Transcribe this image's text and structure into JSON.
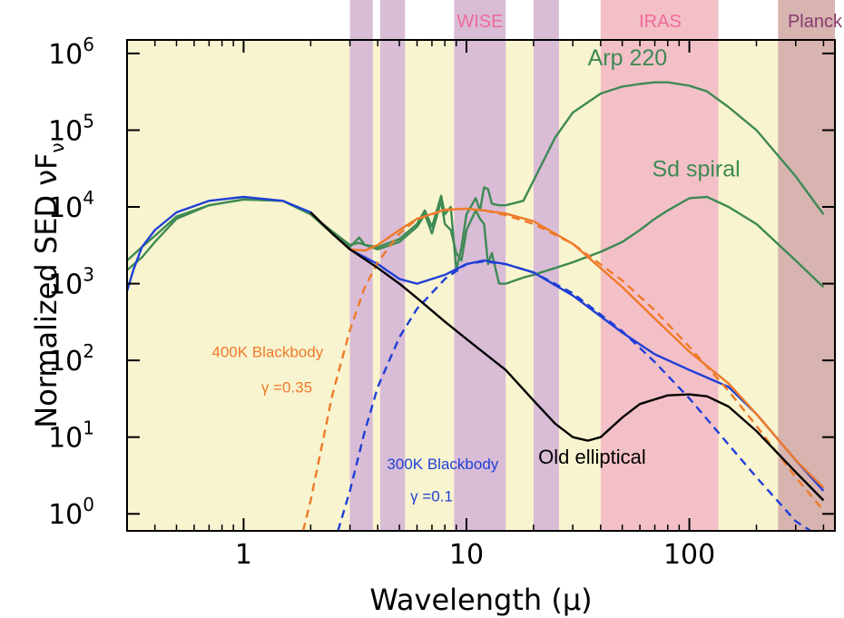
{
  "chart_data": {
    "type": "line",
    "title": "",
    "xlabel": "Wavelength (μ)",
    "ylabel": "Normalized SED νF",
    "ylabel_sub": "ν",
    "x_scale": "log",
    "y_scale": "log",
    "xlim": [
      0.3,
      450
    ],
    "ylim": [
      0.6,
      1500000
    ],
    "x_ticks": [
      {
        "value": 1,
        "label": "1"
      },
      {
        "value": 10,
        "label": "10"
      },
      {
        "value": 100,
        "label": "100"
      }
    ],
    "y_ticks": [
      {
        "value": 1,
        "base": "10",
        "exp": "0"
      },
      {
        "value": 10,
        "base": "10",
        "exp": "1"
      },
      {
        "value": 100,
        "base": "10",
        "exp": "2"
      },
      {
        "value": 1000,
        "base": "10",
        "exp": "3"
      },
      {
        "value": 10000,
        "base": "10",
        "exp": "4"
      },
      {
        "value": 100000,
        "base": "10",
        "exp": "5"
      },
      {
        "value": 1000000,
        "base": "10",
        "exp": "6"
      }
    ],
    "background_color": "#f8f4cf",
    "bands": [
      {
        "name": "",
        "x0": 3.0,
        "x1": 3.8,
        "color": "#d9bcd6"
      },
      {
        "name": "",
        "x0": 4.1,
        "x1": 5.3,
        "color": "#d9bcd6"
      },
      {
        "name": "WISE",
        "x0": 8.8,
        "x1": 15.0,
        "color": "#d9bcd6"
      },
      {
        "name": "",
        "x0": 20.0,
        "x1": 26.0,
        "color": "#d9bcd6"
      },
      {
        "name": "IRAS",
        "x0": 40.0,
        "x1": 135.0,
        "color": "#f4c0c8"
      },
      {
        "name": "Planck",
        "x0": 250.0,
        "x1": 450.0,
        "color": "#d7b4b0"
      }
    ],
    "band_labels": [
      {
        "text": "WISE",
        "x": 11.5,
        "color": "#ee6b9a"
      },
      {
        "text": "IRAS",
        "x": 74,
        "color": "#ee6b9a"
      },
      {
        "text": "Planck",
        "x": 345,
        "color": "#8a3a6e"
      }
    ],
    "series": [
      {
        "name": "Arp 220",
        "color": "#3e8a53",
        "dash": false,
        "x": [
          0.3,
          0.35,
          0.4,
          0.5,
          0.7,
          1.0,
          1.5,
          2.0,
          2.5,
          3.0,
          3.3,
          3.5,
          4.0,
          5.0,
          6.0,
          6.5,
          7.0,
          7.7,
          8.0,
          8.5,
          9.0,
          9.5,
          10.0,
          11.0,
          11.5,
          12.0,
          12.5,
          13.0,
          14.0,
          15.0,
          18.0,
          20.0,
          25.0,
          30.0,
          40.0,
          50.0,
          60.0,
          70.0,
          80.0,
          100.0,
          120.0,
          150.0,
          200.0,
          300.0,
          400.0
        ],
        "values": [
          1500,
          2200,
          3500,
          7000,
          10500,
          12500,
          12000,
          8000,
          4800,
          3200,
          3400,
          3200,
          3000,
          3800,
          6000,
          9000,
          5500,
          14000,
          8000,
          10000,
          1500,
          3000,
          8000,
          13000,
          9000,
          18000,
          17000,
          11000,
          10500,
          10500,
          12000,
          22000,
          80000,
          170000,
          300000,
          370000,
          400000,
          420000,
          420000,
          380000,
          320000,
          200000,
          100000,
          25000,
          8000
        ]
      },
      {
        "name": "Sd spiral",
        "color": "#3e8a53",
        "dash": false,
        "x": [
          0.3,
          0.35,
          0.4,
          0.5,
          0.7,
          1.0,
          1.5,
          2.0,
          2.5,
          3.0,
          3.3,
          3.5,
          4.0,
          5.0,
          6.0,
          6.5,
          7.0,
          7.7,
          8.0,
          8.5,
          9.0,
          9.5,
          10.0,
          11.0,
          11.5,
          12.0,
          12.5,
          13.0,
          14.0,
          15.0,
          18.0,
          20.0,
          25.0,
          30.0,
          40.0,
          50.0,
          60.0,
          70.0,
          80.0,
          100.0,
          120.0,
          150.0,
          200.0,
          300.0,
          400.0
        ],
        "values": [
          2000,
          3000,
          4200,
          7500,
          10500,
          12500,
          12000,
          8000,
          4500,
          3000,
          4000,
          3200,
          2800,
          3500,
          5500,
          8000,
          4500,
          12000,
          6000,
          5000,
          2500,
          2000,
          5000,
          9000,
          7000,
          6000,
          1800,
          2500,
          1000,
          1000,
          1200,
          1300,
          1600,
          1900,
          2600,
          3500,
          5000,
          7000,
          9000,
          13000,
          13500,
          10000,
          6000,
          2000,
          900
        ]
      },
      {
        "name": "",
        "color": "#1f3fd6",
        "dash": false,
        "x": [
          0.3,
          0.32,
          0.35,
          0.4,
          0.5,
          0.7,
          1.0,
          1.5,
          2.0,
          2.5,
          3.0,
          4.0,
          5.0,
          6.0,
          8.0,
          10.0,
          12.0,
          15.0,
          20.0,
          30.0,
          50.0,
          70.0,
          100.0,
          150.0,
          200.0,
          300.0,
          400.0
        ],
        "values": [
          800,
          1500,
          3000,
          5000,
          8500,
          12000,
          13500,
          12000,
          8500,
          4500,
          2800,
          1800,
          1150,
          1000,
          1300,
          1800,
          2000,
          1800,
          1400,
          700,
          230,
          120,
          75,
          45,
          20,
          5,
          2
        ]
      },
      {
        "name": "",
        "color": "#ef7a2a",
        "dash": false,
        "x": [
          2.0,
          2.5,
          3.0,
          3.5,
          4.0,
          5.0,
          6.0,
          8.0,
          10.0,
          12.0,
          15.0,
          20.0,
          30.0,
          50.0,
          70.0,
          100.0,
          150.0,
          200.0,
          300.0,
          400.0
        ],
        "values": [
          8500,
          4500,
          2800,
          2700,
          3200,
          5000,
          7000,
          9200,
          9500,
          9000,
          8200,
          6500,
          3300,
          900,
          350,
          130,
          50,
          20,
          5,
          2.2
        ]
      },
      {
        "name": "",
        "color": "#ef7a2a",
        "dash": true,
        "x": [
          1.85,
          2.0,
          2.5,
          3.0,
          3.5,
          4.0,
          5.0,
          6.0,
          8.0,
          10.0,
          12.0,
          15.0,
          20.0,
          30.0,
          50.0,
          70.0,
          100.0,
          150.0,
          200.0,
          300.0,
          400.0
        ],
        "values": [
          0.6,
          1.5,
          35,
          250,
          900,
          1900,
          4500,
          6900,
          9100,
          9500,
          9000,
          7800,
          6000,
          3300,
          1100,
          450,
          150,
          40,
          14,
          3,
          1.1
        ]
      },
      {
        "name": "",
        "color": "#1f3fd6",
        "dash": true,
        "x": [
          2.65,
          3.0,
          3.5,
          4.0,
          5.0,
          6.0,
          8.0,
          10.0,
          12.0,
          15.0,
          20.0,
          30.0,
          50.0,
          70.0,
          100.0,
          150.0,
          200.0,
          300.0,
          350.0
        ],
        "values": [
          0.6,
          2,
          12,
          45,
          200,
          470,
          1150,
          1800,
          1950,
          1800,
          1400,
          750,
          240,
          95,
          32,
          8,
          3,
          0.8,
          0.6
        ]
      },
      {
        "name": "",
        "color": "#000000",
        "dash": false,
        "x": [
          2.0,
          2.5,
          3.0,
          4.0,
          5.0,
          6.0,
          8.0,
          10.0,
          15.0,
          20.0,
          25.0,
          30.0,
          35.0,
          40.0,
          50.0,
          60.0,
          80.0,
          100.0,
          120.0,
          150.0,
          200.0,
          300.0,
          400.0
        ],
        "values": [
          8500,
          4500,
          2800,
          1600,
          1000,
          650,
          320,
          190,
          75,
          30,
          15,
          10,
          9,
          10,
          18,
          27,
          35,
          36,
          34,
          25,
          12,
          3.5,
          1.5
        ]
      }
    ],
    "annotations": [
      {
        "text": "Arp 220",
        "x": 35,
        "y": 700000,
        "color": "#3e8a53",
        "size": 25
      },
      {
        "text": "Sd spiral",
        "x": 68,
        "y": 25000,
        "color": "#3e8a53",
        "size": 25
      },
      {
        "text": "400K Blackbody",
        "x": 0.72,
        "y": 110,
        "color": "#ef7a2a",
        "size": 17
      },
      {
        "text": "γ =0.35",
        "x": 1.2,
        "y": 38,
        "color": "#ef7a2a",
        "size": 17
      },
      {
        "text": "300K Blackbody",
        "x": 4.4,
        "y": 3.8,
        "color": "#1f3fd6",
        "size": 17
      },
      {
        "text": "γ =0.1",
        "x": 5.6,
        "y": 1.45,
        "color": "#1f3fd6",
        "size": 17
      },
      {
        "text": "Old elliptical",
        "x": 21,
        "y": 4.5,
        "color": "#000000",
        "size": 22
      }
    ],
    "grid": false,
    "legend": "none"
  }
}
